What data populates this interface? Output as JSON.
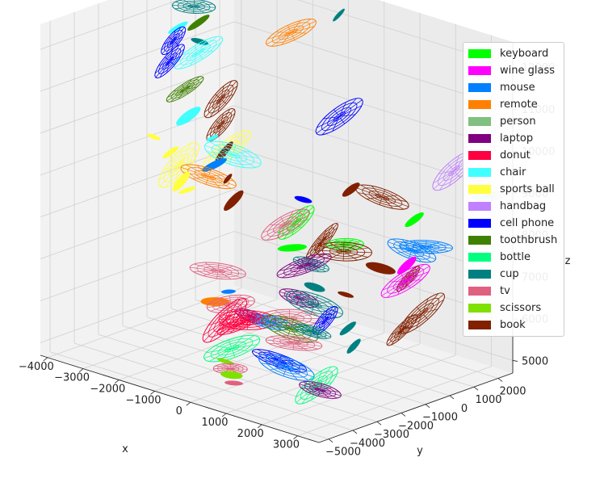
{
  "chart_data": {
    "type": "scatter3d",
    "title": "",
    "xlabel": "x",
    "ylabel": "y",
    "zlabel": "z",
    "x_ticks": [
      "−4000",
      "−3000",
      "−2000",
      "−1000",
      "0",
      "1000",
      "2000",
      "3000"
    ],
    "y_ticks": [
      "−5000",
      "−4000",
      "−3000",
      "−2000",
      "−1000",
      "0",
      "1000",
      "2000"
    ],
    "z_ticks": [
      "5000",
      "6000",
      "7000",
      "8000",
      "9000",
      "10000",
      "11000",
      "12000"
    ],
    "xlim": [
      -4200,
      3600
    ],
    "ylim": [
      -5400,
      2600
    ],
    "zlim": [
      4700,
      12600
    ],
    "grid": true,
    "legend_position": "right",
    "marker": "ellipse (3D disc, wireframe for large objects)",
    "series": [
      {
        "name": "keyboard",
        "color": "#00ff00",
        "points": [
          [
            -500,
            -300,
            7800
          ],
          [
            800,
            -200,
            7600
          ],
          [
            2200,
            600,
            8400
          ],
          [
            -200,
            -900,
            7400
          ]
        ]
      },
      {
        "name": "wine glass",
        "color": "#ff00ff",
        "points": [
          [
            2600,
            -300,
            7600
          ],
          [
            2700,
            -500,
            7300
          ]
        ]
      },
      {
        "name": "mouse",
        "color": "#0080ff",
        "points": [
          [
            -1500,
            -2200,
            9300
          ],
          [
            2400,
            200,
            7800
          ],
          [
            2800,
            200,
            8000
          ],
          [
            500,
            -2800,
            6200
          ],
          [
            -900,
            -2500,
            6500
          ],
          [
            1200,
            -3200,
            5400
          ]
        ]
      },
      {
        "name": "remote",
        "color": "#ff8000",
        "points": [
          [
            -2200,
            2000,
            11400
          ],
          [
            -1800,
            -2000,
            8900
          ],
          [
            -1200,
            -2600,
            6200
          ]
        ]
      },
      {
        "name": "person",
        "color": "#80c080",
        "points": [
          [
            3200,
            2200,
            8900
          ]
        ]
      },
      {
        "name": "laptop",
        "color": "#800080",
        "points": [
          [
            200,
            -1000,
            7100
          ],
          [
            600,
            -1800,
            6600
          ],
          [
            -400,
            -2300,
            6000
          ],
          [
            1600,
            -2400,
            4800
          ]
        ]
      },
      {
        "name": "donut",
        "color": "#ff0040",
        "points": [
          [
            -800,
            -2800,
            5900
          ],
          [
            -600,
            -2500,
            5800
          ],
          [
            -300,
            -2600,
            6000
          ]
        ]
      },
      {
        "name": "chair",
        "color": "#40ffff",
        "points": [
          [
            -3400,
            -900,
            11800
          ],
          [
            -3100,
            -500,
            11200
          ],
          [
            -2700,
            -1500,
            10000
          ],
          [
            -2300,
            -1100,
            9500
          ],
          [
            -2000,
            -700,
            9100
          ]
        ]
      },
      {
        "name": "sports ball",
        "color": "#ffff40",
        "points": [
          [
            -2100,
            -800,
            9200
          ],
          [
            -3400,
            -1900,
            9400
          ],
          [
            -3200,
            -1500,
            9000
          ],
          [
            -2900,
            -1600,
            8800
          ],
          [
            -2700,
            -1800,
            8500
          ],
          [
            -2600,
            -1700,
            8300
          ]
        ]
      },
      {
        "name": "handbag",
        "color": "#c080ff",
        "points": [
          [
            2500,
            1800,
            9400
          ]
        ]
      },
      {
        "name": "cell phone",
        "color": "#0000ff",
        "points": [
          [
            -3800,
            -500,
            11300
          ],
          [
            -3700,
            -800,
            10900
          ],
          [
            100,
            600,
            10300
          ],
          [
            -300,
            -300,
            8400
          ],
          [
            1400,
            -1900,
            6300
          ],
          [
            1000,
            -3200,
            5500
          ]
        ]
      },
      {
        "name": "toothbrush",
        "color": "#408000",
        "points": [
          [
            -3300,
            -200,
            11800
          ],
          [
            -3000,
            -1200,
            10500
          ],
          [
            700,
            -2300,
            6000
          ]
        ]
      },
      {
        "name": "bottle",
        "color": "#00ff80",
        "points": [
          [
            -400,
            -3100,
            5400
          ],
          [
            1700,
            -2700,
            5000
          ]
        ]
      },
      {
        "name": "cup",
        "color": "#008080",
        "points": [
          [
            -4000,
            1400,
            13000
          ],
          [
            -4100,
            900,
            12600
          ],
          [
            -3700,
            200,
            12000
          ],
          [
            -3200,
            -300,
            11400
          ],
          [
            -1000,
            2200,
            12100
          ],
          [
            600,
            -1300,
            7300
          ],
          [
            900,
            -1600,
            6900
          ],
          [
            1100,
            -1900,
            6600
          ],
          [
            1300,
            -2300,
            6100
          ],
          [
            1900,
            -1700,
            6200
          ],
          [
            2200,
            -1900,
            5900
          ]
        ]
      },
      {
        "name": "tv",
        "color": "#e06080",
        "points": [
          [
            -400,
            -900,
            7900
          ],
          [
            -1400,
            -2200,
            6800
          ],
          [
            -700,
            -2700,
            6300
          ],
          [
            600,
            -2200,
            6200
          ],
          [
            1000,
            -2600,
            5800
          ],
          [
            -100,
            -3600,
            5100
          ],
          [
            200,
            -3900,
            4900
          ]
        ]
      },
      {
        "name": "scissors",
        "color": "#80e000",
        "points": [
          [
            -300,
            -3500,
            5200
          ],
          [
            0,
            -3700,
            5000
          ]
        ]
      },
      {
        "name": "book",
        "color": "#802000",
        "points": [
          [
            -2400,
            -600,
            10300
          ],
          [
            -2200,
            -900,
            9800
          ],
          [
            -1900,
            -1200,
            9300
          ],
          [
            -1600,
            -1500,
            8800
          ],
          [
            -1300,
            -1700,
            8400
          ],
          [
            700,
            200,
            8800
          ],
          [
            1300,
            600,
            8700
          ],
          [
            500,
            -700,
            7700
          ],
          [
            900,
            -400,
            7500
          ],
          [
            1800,
            -200,
            7300
          ],
          [
            2300,
            200,
            7100
          ],
          [
            1500,
            -1200,
            6800
          ],
          [
            2900,
            -100,
            6500
          ],
          [
            2600,
            -500,
            6100
          ]
        ]
      }
    ]
  }
}
